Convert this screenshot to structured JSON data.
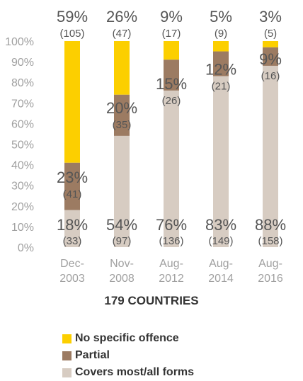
{
  "chart_data": {
    "type": "bar",
    "stacked": true,
    "categories": [
      [
        "Dec-",
        "2003"
      ],
      [
        "Nov-",
        "2008"
      ],
      [
        "Aug-",
        "2012"
      ],
      [
        "Aug-",
        "2014"
      ],
      [
        "Aug-",
        "2016"
      ]
    ],
    "xlabel": "179 COUNTRIES",
    "ylim": [
      0,
      100
    ],
    "yticks": [
      "0%",
      "10%",
      "20%",
      "30%",
      "40%",
      "50%",
      "60%",
      "70%",
      "80%",
      "90%",
      "100%"
    ],
    "series": [
      {
        "name": "Covers most/all forms",
        "color": "#d7ccc2",
        "values": [
          18,
          54,
          76,
          83,
          88
        ],
        "labels": [
          "18%",
          "54%",
          "76%",
          "83%",
          "88%"
        ],
        "counts": [
          "(33)",
          "(97)",
          "(136)",
          "(149)",
          "(158)"
        ]
      },
      {
        "name": "Partial",
        "color": "#9c7b62",
        "values": [
          23,
          20,
          15,
          12,
          9
        ],
        "labels": [
          "23%",
          "20%",
          "15%",
          "12%",
          "9%"
        ],
        "counts": [
          "(41)",
          "(35)",
          "(26)",
          "(21)",
          "(16)"
        ]
      },
      {
        "name": "No specific offence",
        "color": "#fccf00",
        "values": [
          59,
          26,
          9,
          5,
          3
        ],
        "labels": [
          "59%",
          "26%",
          "9%",
          "5%",
          "3%"
        ],
        "counts": [
          "(105)",
          "(47)",
          "(17)",
          "(9)",
          "(5)"
        ]
      }
    ],
    "legend": [
      "No specific offence",
      "Partial",
      "Covers most/all forms"
    ],
    "legend_position": "bottom-left",
    "grid": false
  }
}
